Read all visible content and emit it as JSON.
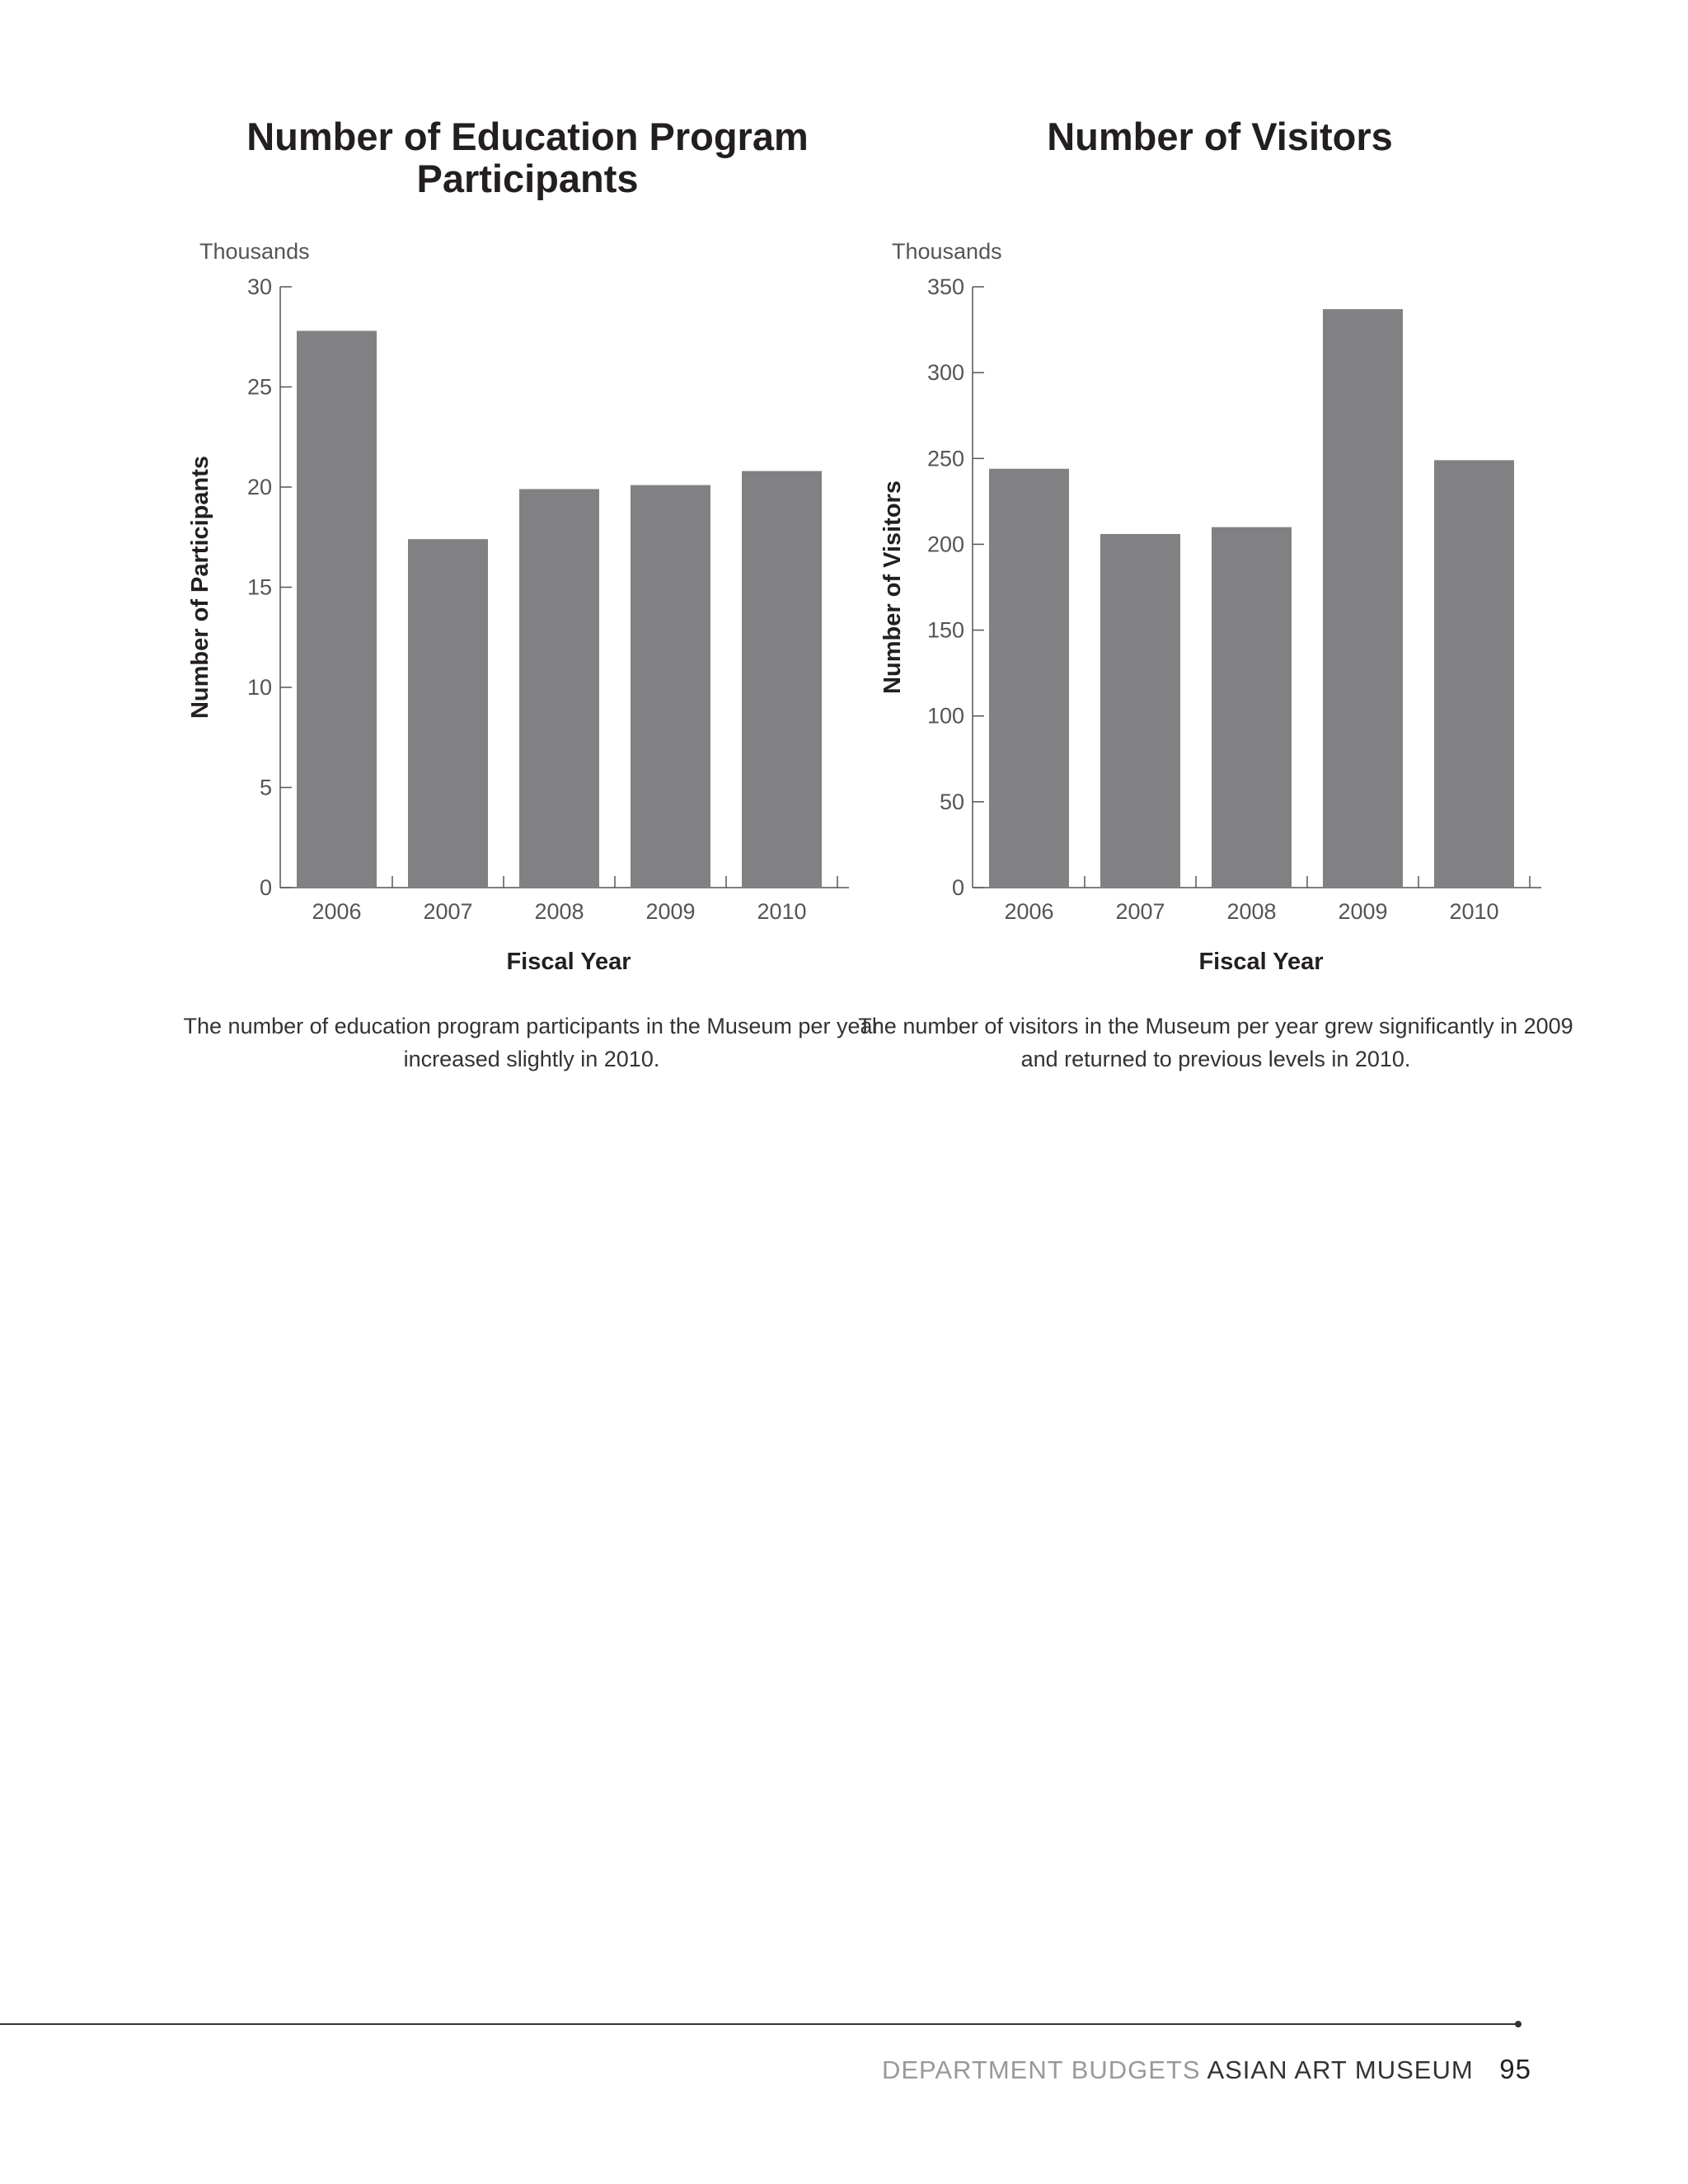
{
  "chart_data": [
    {
      "type": "bar",
      "title": "Number of Education Program Participants",
      "unit_label": "Thousands",
      "xlabel": "Fiscal Year",
      "ylabel": "Number of Participants",
      "categories": [
        "2006",
        "2007",
        "2008",
        "2009",
        "2010"
      ],
      "values": [
        27.8,
        17.4,
        19.9,
        20.1,
        20.8
      ],
      "ylim": [
        0,
        30
      ],
      "yticks": [
        "0",
        "5",
        "10",
        "15",
        "20",
        "25",
        "30"
      ],
      "bar_color": "#818083",
      "grid": false,
      "caption": "The number of education program participants in the Museum per year increased slightly in 2010."
    },
    {
      "type": "bar",
      "title": "Number of Visitors",
      "unit_label": "Thousands",
      "xlabel": "Fiscal Year",
      "ylabel": "Number of Visitors",
      "categories": [
        "2006",
        "2007",
        "2008",
        "2009",
        "2010"
      ],
      "values": [
        244,
        206,
        210,
        337,
        249
      ],
      "ylim": [
        0,
        350
      ],
      "yticks": [
        "0",
        "50",
        "100",
        "150",
        "200",
        "250",
        "300",
        "350"
      ],
      "bar_color": "#818083",
      "grid": false,
      "caption": "The number of visitors in the Museum per year grew significantly in 2009 and returned to previous levels in 2010."
    }
  ],
  "footer": {
    "section": "DEPARTMENT BUDGETS",
    "department": "ASIAN ART MUSEUM",
    "page_number": "95"
  }
}
